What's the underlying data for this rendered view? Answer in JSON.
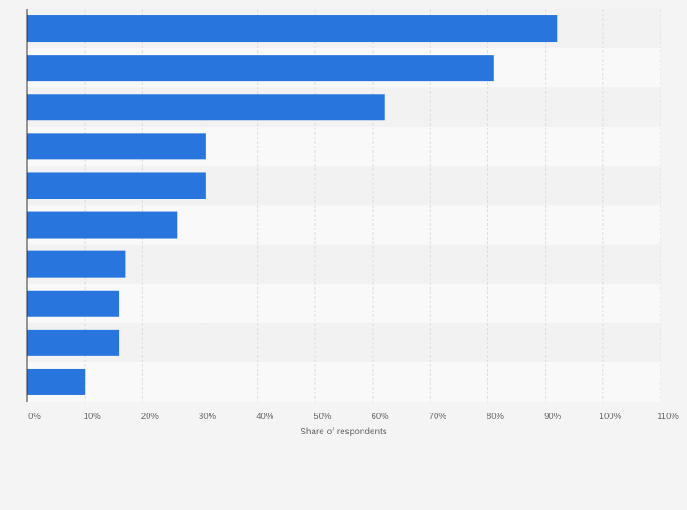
{
  "chart_data": {
    "type": "bar",
    "orientation": "horizontal",
    "categories": [
      "",
      "",
      "",
      "",
      "",
      "",
      "",
      "",
      "",
      ""
    ],
    "values": [
      92,
      81,
      62,
      31,
      31,
      26,
      17,
      16,
      16,
      10
    ],
    "xlabel": "Share of respondents",
    "xlim": [
      0,
      110
    ],
    "x_ticks": [
      0,
      10,
      20,
      30,
      40,
      50,
      60,
      70,
      80,
      90,
      100,
      110
    ],
    "x_tick_labels": [
      "0%",
      "10%",
      "20%",
      "30%",
      "40%",
      "50%",
      "60%",
      "70%",
      "80%",
      "90%",
      "100%",
      "110%"
    ],
    "grid": true,
    "legend": "none",
    "colors": {
      "bar": "#2876dd",
      "row_dark": "#f2f2f2",
      "row_light": "#f9f9f9",
      "grid": "#dddddd",
      "axis": "#333333",
      "text": "#666666"
    }
  }
}
